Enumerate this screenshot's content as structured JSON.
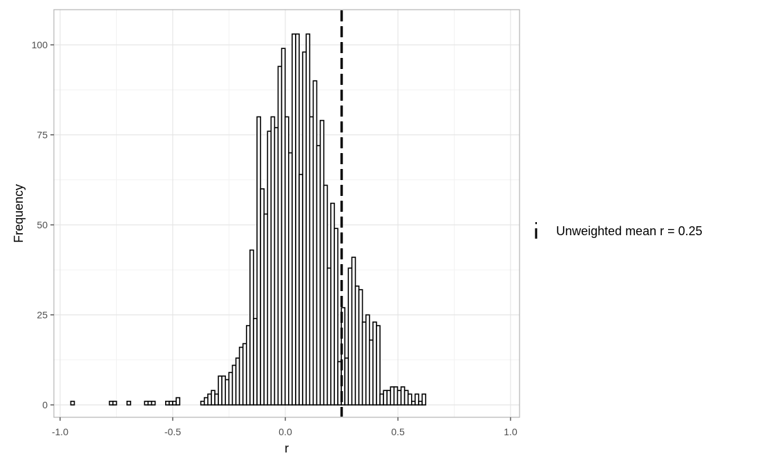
{
  "chart_data": {
    "type": "bar",
    "subtype": "histogram",
    "title": "",
    "xlabel": "r",
    "ylabel": "Frequency",
    "xlim": [
      -1.0,
      1.0
    ],
    "ylim": [
      0,
      105
    ],
    "xticks": [
      -1.0,
      -0.5,
      0.0,
      0.5,
      1.0
    ],
    "xtick_labels": [
      "-1.0",
      "-0.5",
      "0.0",
      "0.5",
      "1.0"
    ],
    "yticks": [
      0,
      25,
      50,
      75,
      100
    ],
    "ytick_labels": [
      "0",
      "25",
      "50",
      "75",
      "100"
    ],
    "grid": true,
    "theme": "light gray gridlines, gray panel border",
    "bin_width": 0.0156,
    "bin_start": -0.9525,
    "values": [
      1,
      0,
      0,
      0,
      0,
      0,
      0,
      0,
      0,
      0,
      0,
      1,
      1,
      0,
      0,
      0,
      1,
      0,
      0,
      0,
      0,
      1,
      1,
      1,
      0,
      0,
      0,
      1,
      1,
      1,
      2,
      0,
      0,
      0,
      0,
      0,
      0,
      1,
      2,
      3,
      4,
      3,
      8,
      8,
      7,
      9,
      11,
      13,
      16,
      17,
      22,
      43,
      24,
      80,
      60,
      53,
      76,
      80,
      77,
      94,
      99,
      80,
      70,
      103,
      103,
      64,
      98,
      103,
      80,
      90,
      72,
      79,
      61,
      38,
      56,
      49,
      12,
      27,
      13,
      38,
      41,
      33,
      32,
      23,
      25,
      18,
      23,
      22,
      3,
      4,
      4,
      5,
      5,
      4,
      5,
      4,
      3,
      1,
      3,
      1,
      3
    ],
    "reference_line": {
      "x": 0.25,
      "style": "dashed",
      "color": "#000000",
      "label": "Unweighted mean r = 0.25"
    },
    "legend": {
      "position": "right",
      "entries": [
        "Unweighted mean r = 0.25"
      ]
    },
    "colors": {
      "bar_fill": "#ffffff",
      "bar_stroke": "#000000",
      "grid_major": "#e5e5e5",
      "grid_minor": "#f2f2f2",
      "panel_border": "#b3b3b3",
      "tick_label": "#4d4d4d"
    }
  }
}
